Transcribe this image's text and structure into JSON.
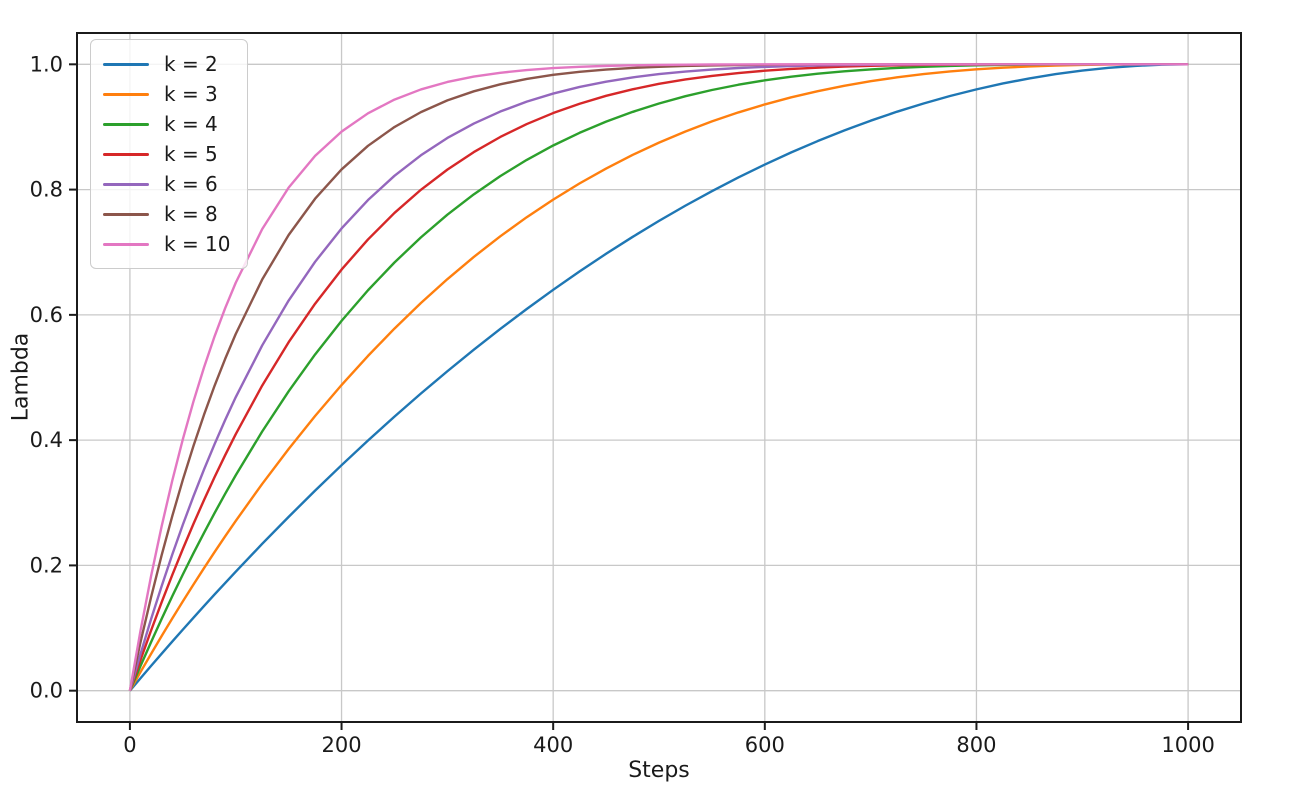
{
  "chart_data": {
    "type": "line",
    "title": "",
    "xlabel": "Steps",
    "ylabel": "Lambda",
    "xlim": [
      -50,
      1050
    ],
    "ylim": [
      -0.05,
      1.05
    ],
    "grid": true,
    "grid_color": "#c8c8c8",
    "spine_color": "#1b1b1b",
    "text_color": "#1a1a1a",
    "legend_position": "upper left",
    "x_ticks": {
      "values": [
        0,
        200,
        400,
        600,
        800,
        1000
      ],
      "labels": [
        "0",
        "200",
        "400",
        "600",
        "800",
        "1000"
      ]
    },
    "y_ticks": {
      "values": [
        0,
        0.2,
        0.4,
        0.6,
        0.8,
        1.0
      ],
      "labels": [
        "0.0",
        "0.2",
        "0.4",
        "0.6",
        "0.8",
        "1.0"
      ]
    },
    "x": [
      0,
      10,
      20,
      30,
      40,
      50,
      60,
      70,
      80,
      90,
      100,
      125,
      150,
      175,
      200,
      225,
      250,
      275,
      300,
      325,
      350,
      375,
      400,
      425,
      450,
      475,
      500,
      525,
      550,
      575,
      600,
      625,
      650,
      675,
      700,
      725,
      750,
      775,
      800,
      825,
      850,
      875,
      900,
      925,
      950,
      975,
      1000
    ],
    "series": [
      {
        "name": "k = 2",
        "color": "#1f77b4",
        "values": [
          0,
          0.0199,
          0.0396,
          0.0591,
          0.0784,
          0.0975,
          0.1164,
          0.1351,
          0.1536,
          0.1719,
          0.19,
          0.2344,
          0.2775,
          0.3194,
          0.36,
          0.3994,
          0.4375,
          0.4744,
          0.51,
          0.5444,
          0.5775,
          0.6094,
          0.64,
          0.6694,
          0.6975,
          0.7244,
          0.75,
          0.7744,
          0.7975,
          0.8194,
          0.84,
          0.8594,
          0.8775,
          0.8944,
          0.91,
          0.9244,
          0.9375,
          0.9494,
          0.96,
          0.9694,
          0.9775,
          0.9844,
          0.99,
          0.9944,
          0.9975,
          0.9994,
          1
        ]
      },
      {
        "name": "k = 3",
        "color": "#ff7f0e",
        "values": [
          0,
          0.0297,
          0.0588,
          0.0873,
          0.1153,
          0.1426,
          0.1694,
          0.1956,
          0.2213,
          0.2464,
          0.271,
          0.3301,
          0.3859,
          0.4385,
          0.488,
          0.5345,
          0.5781,
          0.6189,
          0.657,
          0.6925,
          0.7254,
          0.7559,
          0.784,
          0.8099,
          0.8336,
          0.8553,
          0.875,
          0.8928,
          0.9089,
          0.9232,
          0.936,
          0.9473,
          0.9571,
          0.9657,
          0.973,
          0.9792,
          0.9844,
          0.9886,
          0.992,
          0.9946,
          0.9966,
          0.998,
          0.999,
          0.9996,
          0.9999,
          1,
          1
        ]
      },
      {
        "name": "k = 4",
        "color": "#2ca02c",
        "values": [
          0,
          0.0394,
          0.0776,
          0.1147,
          0.1507,
          0.1855,
          0.2193,
          0.2519,
          0.2836,
          0.3143,
          0.3439,
          0.4138,
          0.478,
          0.5368,
          0.5904,
          0.6393,
          0.6836,
          0.7237,
          0.7599,
          0.7924,
          0.8215,
          0.8474,
          0.8704,
          0.8907,
          0.9085,
          0.924,
          0.9375,
          0.9491,
          0.959,
          0.9674,
          0.9744,
          0.9802,
          0.985,
          0.9888,
          0.9919,
          0.9943,
          0.9961,
          0.9974,
          0.9984,
          0.9991,
          0.9995,
          0.9998,
          0.9999,
          1,
          1,
          1,
          1
        ]
      },
      {
        "name": "k = 5",
        "color": "#d62728",
        "values": [
          0,
          0.049,
          0.0961,
          0.1413,
          0.1846,
          0.2262,
          0.2661,
          0.3043,
          0.3409,
          0.376,
          0.4095,
          0.4871,
          0.5563,
          0.6178,
          0.6723,
          0.7204,
          0.7627,
          0.7997,
          0.8319,
          0.8599,
          0.884,
          0.9046,
          0.9222,
          0.9371,
          0.9497,
          0.9601,
          0.9688,
          0.9758,
          0.9815,
          0.9861,
          0.9898,
          0.9926,
          0.9947,
          0.9964,
          0.9976,
          0.9984,
          0.999,
          0.9994,
          0.9997,
          0.9998,
          0.9999,
          1,
          1,
          1,
          1,
          1,
          1
        ]
      },
      {
        "name": "k = 6",
        "color": "#9467bd",
        "values": [
          0,
          0.0585,
          0.1142,
          0.167,
          0.2172,
          0.2649,
          0.3101,
          0.353,
          0.3936,
          0.4321,
          0.4686,
          0.5512,
          0.6229,
          0.6847,
          0.7379,
          0.7833,
          0.822,
          0.8548,
          0.8824,
          0.9054,
          0.9246,
          0.9404,
          0.9533,
          0.9639,
          0.9723,
          0.9791,
          0.9844,
          0.9885,
          0.9917,
          0.9941,
          0.9959,
          0.9972,
          0.9982,
          0.9988,
          0.9993,
          0.9996,
          0.9998,
          0.9999,
          0.9999,
          1,
          1,
          1,
          1,
          1,
          1,
          1,
          1
        ]
      },
      {
        "name": "k = 8",
        "color": "#8c564b",
        "values": [
          0,
          0.0773,
          0.1492,
          0.2163,
          0.2786,
          0.3366,
          0.3904,
          0.4404,
          0.4868,
          0.5297,
          0.5695,
          0.6564,
          0.7275,
          0.7854,
          0.8322,
          0.8699,
          0.8999,
          0.9237,
          0.9424,
          0.9569,
          0.9681,
          0.9767,
          0.9832,
          0.9881,
          0.9916,
          0.9942,
          0.9961,
          0.9974,
          0.9983,
          0.9989,
          0.9993,
          0.9996,
          0.9998,
          0.9999,
          0.9999,
          1,
          1,
          1,
          1,
          1,
          1,
          1,
          1,
          1,
          1,
          1,
          1
        ]
      },
      {
        "name": "k = 10",
        "color": "#e377c2",
        "values": [
          0,
          0.0956,
          0.1829,
          0.2626,
          0.3352,
          0.4013,
          0.4614,
          0.516,
          0.5656,
          0.6106,
          0.6513,
          0.7369,
          0.8031,
          0.8539,
          0.8926,
          0.9218,
          0.9437,
          0.9599,
          0.9718,
          0.9804,
          0.9865,
          0.9909,
          0.994,
          0.996,
          0.9975,
          0.9984,
          0.999,
          0.9994,
          0.9997,
          0.9998,
          0.9999,
          0.9999,
          1,
          1,
          1,
          1,
          1,
          1,
          1,
          1,
          1,
          1,
          1,
          1,
          1,
          1,
          1
        ]
      }
    ]
  }
}
